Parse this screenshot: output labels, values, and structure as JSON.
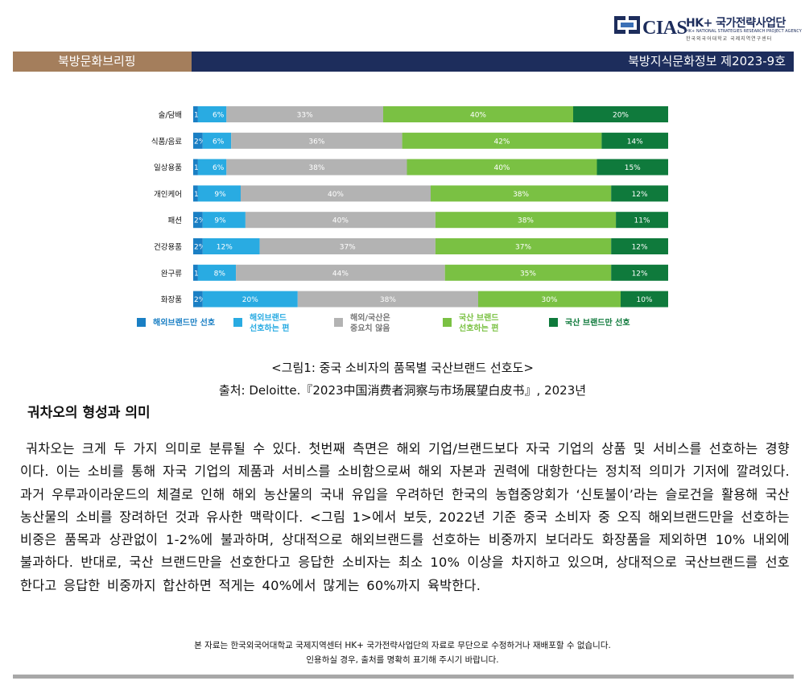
{
  "header": {
    "logo_text": "CIAS",
    "logo_title": "HK+ 국가전략사업단",
    "logo_sub_en": "HK+ NATIONAL STRATEGIES RESEARCH PROJECT AGENCY",
    "logo_sub_ko": "한국외국어대학교 국제지역연구센터",
    "left_label": "북방문화브리핑",
    "right_label": "북방지식문화정보 제2023-9호"
  },
  "colors": {
    "navy": "#1d2d5c",
    "brown": "#a47e5c",
    "foreign_only": "#1a7fc4",
    "foreign_pref": "#29abe2",
    "neutral": "#b3b3b3",
    "domestic_pref": "#7ac143",
    "domestic_only": "#0f7a3c"
  },
  "chart_data": {
    "type": "bar",
    "orientation": "horizontal-stacked-100",
    "categories": [
      "술/담배",
      "식품/음료",
      "일상용품",
      "개인케어",
      "패션",
      "건강용품",
      "완구류",
      "화장품"
    ],
    "series": [
      {
        "name": "해외브랜드만 선호",
        "color": "#1a7fc4",
        "values": [
          1,
          2,
          1,
          1,
          2,
          2,
          1,
          2
        ]
      },
      {
        "name": "해외브랜드 선호하는 편",
        "color": "#29abe2",
        "values": [
          6,
          6,
          6,
          9,
          9,
          12,
          8,
          20
        ]
      },
      {
        "name": "해외/국산은 중요치 않음",
        "color": "#b3b3b3",
        "values": [
          33,
          36,
          38,
          40,
          40,
          37,
          44,
          38
        ]
      },
      {
        "name": "국산 브랜드 선호하는 편",
        "color": "#7ac143",
        "values": [
          40,
          42,
          40,
          38,
          38,
          37,
          35,
          30
        ]
      },
      {
        "name": "국산 브랜드만 선호",
        "color": "#0f7a3c",
        "values": [
          20,
          14,
          15,
          12,
          11,
          12,
          12,
          10
        ]
      }
    ],
    "legend_lines": [
      [
        "해외브랜드만 선호"
      ],
      [
        "해외브랜드",
        "선호하는 편"
      ],
      [
        "해외/국산은",
        "중요치 않음"
      ],
      [
        "국산 브랜드",
        "선호하는 편"
      ],
      [
        "국산 브랜드만 선호"
      ]
    ],
    "legend_position": "bottom",
    "xlim": [
      0,
      100
    ]
  },
  "figure": {
    "caption": "<그림1: 중국 소비자의 품목별 국산브랜드 선호도>",
    "source": "출처: Deloitte.『2023中国消费者洞察与市场展望白皮书』, 2023년"
  },
  "section": {
    "title": "궈차오의 형성과 의미",
    "paragraph": "궈차오는 크게 두 가지 의미로 분류될 수 있다. 첫번째 측면은 해외 기업/브랜드보다 자국 기업의 상품 및 서비스를 선호하는 경향이다. 이는 소비를 통해 자국 기업의 제품과 서비스를 소비함으로써 해외 자본과 권력에 대항한다는 정치적 의미가 기저에 깔려있다. 과거 우루과이라운드의 체결로 인해 해외 농산물의 국내 유입을 우려하던 한국의 농협중앙회가 ‘신토불이’라는 슬로건을 활용해 국산 농산물의 소비를 장려하던 것과 유사한 맥락이다. <그림 1>에서 보듯, 2022년 기준 중국 소비자 중 오직 해외브랜드만을 선호하는 비중은 품목과 상관없이 1-2%에 불과하며, 상대적으로 해외브랜드를 선호하는 비중까지 보더라도 화장품을 제외하면 10% 내외에 불과하다. 반대로, 국산 브랜드만을 선호한다고 응답한 소비자는 최소 10% 이상을 차지하고 있으며, 상대적으로 국산브랜드를 선호한다고 응답한 비중까지 합산하면 적게는 40%에서 많게는 60%까지 육박한다."
  },
  "footer": {
    "line1": "본 자료는 한국외국어대학교 국제지역센터 HK+ 국가전략사업단의 자료로 무단으로 수정하거나 재배포할 수 없습니다.",
    "line2": "인용하실 경우, 출처를 명확히 표기해 주시기 바랍니다."
  }
}
